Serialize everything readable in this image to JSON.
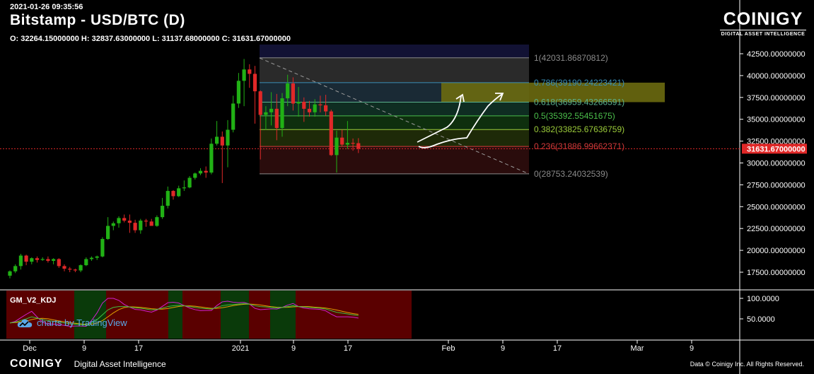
{
  "header": {
    "timestamp": "2021-01-26 09:35:56",
    "title": "Bitstamp - USD/BTC (D)",
    "ohlc": "O: 32264.15000000 H: 32837.63000000 L: 31137.68000000 C: 31631.67000000"
  },
  "logo": {
    "word": "COINIGY",
    "tagline": "DIGITAL ASSET INTELLIGENCE"
  },
  "indicator": {
    "name": "GM_V2_KDJ",
    "watermark": "charts by TradingView"
  },
  "footer": {
    "brand": "COINIGY",
    "tagline": "Digital Asset Intelligence",
    "credit": "Data © Coinigy Inc.  All Rights Reserved."
  },
  "colors": {
    "up": "#21b115",
    "down": "#e02828",
    "background": "#000000",
    "price_line": "#e02828"
  },
  "chart_data": {
    "type": "candlestick",
    "title": "Bitstamp - USD/BTC (D)",
    "ylim": [
      15200,
      43600
    ],
    "y_ticks": [
      "42500.00000000",
      "40000.00000000",
      "37500.00000000",
      "35000.00000000",
      "32500.00000000",
      "30000.00000000",
      "27500.00000000",
      "25000.00000000",
      "22500.00000000",
      "20000.00000000",
      "17500.00000000"
    ],
    "x_ticks": [
      "Dec",
      "9",
      "17",
      "2021",
      "9",
      "17",
      "Feb",
      "9",
      "17",
      "Mar",
      "9"
    ],
    "last_price": "31631.67000000",
    "last_price_value": 31631.67,
    "candles": [
      [
        17100,
        17700,
        16800,
        17600
      ],
      [
        17600,
        18400,
        17400,
        18200
      ],
      [
        18200,
        19600,
        17800,
        19400
      ],
      [
        19400,
        19500,
        18300,
        18700
      ],
      [
        18700,
        19200,
        18400,
        19100
      ],
      [
        19100,
        19300,
        18600,
        18900
      ],
      [
        18900,
        19200,
        18800,
        19000
      ],
      [
        19000,
        19300,
        18600,
        18800
      ],
      [
        18800,
        19100,
        18400,
        19000
      ],
      [
        19000,
        19100,
        18000,
        18200
      ],
      [
        18200,
        18400,
        17600,
        17900
      ],
      [
        17900,
        18100,
        17500,
        17800
      ],
      [
        17800,
        17900,
        17500,
        17700
      ],
      [
        17700,
        18400,
        17500,
        18300
      ],
      [
        18300,
        19200,
        18200,
        19000
      ],
      [
        19000,
        19300,
        18800,
        19150
      ],
      [
        19150,
        19400,
        18900,
        19300
      ],
      [
        19300,
        21500,
        19200,
        21300
      ],
      [
        21300,
        23800,
        21200,
        22800
      ],
      [
        22800,
        23300,
        22300,
        23100
      ],
      [
        23100,
        23900,
        22600,
        23700
      ],
      [
        23700,
        24100,
        23200,
        23400
      ],
      [
        23400,
        24100,
        22000,
        23150
      ],
      [
        23150,
        23500,
        22000,
        22300
      ],
      [
        22300,
        23600,
        21900,
        23400
      ],
      [
        23400,
        23600,
        22700,
        23300
      ],
      [
        23300,
        23600,
        22900,
        22800
      ],
      [
        22800,
        24000,
        22700,
        23800
      ],
      [
        23800,
        26000,
        23600,
        25100
      ],
      [
        25100,
        27300,
        24800,
        26800
      ],
      [
        26800,
        26900,
        25800,
        26200
      ],
      [
        26200,
        27400,
        26100,
        27100
      ],
      [
        27100,
        28000,
        26800,
        27200
      ],
      [
        27200,
        28500,
        27100,
        28300
      ],
      [
        28300,
        28900,
        28100,
        28800
      ],
      [
        28800,
        29400,
        28600,
        29100
      ],
      [
        29100,
        29600,
        28300,
        28900
      ],
      [
        28900,
        32800,
        28700,
        32200
      ],
      [
        32200,
        34800,
        32000,
        33000
      ],
      [
        33000,
        33600,
        27700,
        32000
      ],
      [
        32000,
        34900,
        29500,
        33800
      ],
      [
        33800,
        37700,
        33500,
        36800
      ],
      [
        36800,
        40300,
        36300,
        39400
      ],
      [
        39400,
        41900,
        36500,
        40700
      ],
      [
        40700,
        41300,
        38600,
        40200
      ],
      [
        40200,
        41100,
        34500,
        38200
      ],
      [
        38200,
        38300,
        30400,
        35500
      ],
      [
        35500,
        36500,
        33800,
        35800
      ],
      [
        35800,
        38100,
        34300,
        36200
      ],
      [
        36200,
        37900,
        32600,
        34000
      ],
      [
        34000,
        38000,
        33000,
        37400
      ],
      [
        37400,
        40100,
        36500,
        39100
      ],
      [
        39100,
        39800,
        36000,
        36800
      ],
      [
        36800,
        38700,
        35300,
        37000
      ],
      [
        37000,
        37500,
        34700,
        36200
      ],
      [
        36200,
        37100,
        35300,
        35800
      ],
      [
        35800,
        37300,
        35300,
        36700
      ],
      [
        36700,
        37700,
        35800,
        36600
      ],
      [
        36600,
        37800,
        35400,
        35900
      ],
      [
        35900,
        36100,
        30800,
        30900
      ],
      [
        30900,
        33700,
        28900,
        32900
      ],
      [
        32900,
        33800,
        31900,
        32100
      ],
      [
        32100,
        34800,
        31600,
        32300
      ],
      [
        32300,
        32800,
        31400,
        32200
      ],
      [
        32264.15,
        32837.63,
        31137.68,
        31631.67
      ]
    ],
    "fibonacci": [
      {
        "level": "1",
        "value": "42031.86870812",
        "price": 42031.87,
        "color": "#8a8a8a",
        "band": "#2a2a2a"
      },
      {
        "level": "0.786",
        "value": "39190.24223421",
        "price": 39190.24,
        "color": "#3a8fb7",
        "band": "#1a2a35"
      },
      {
        "level": "0.618",
        "value": "36959.43266591",
        "price": 36959.43,
        "color": "#5ab18e",
        "band": "#0f2d22"
      },
      {
        "level": "0.5",
        "value": "35392.55451675",
        "price": 35392.55,
        "color": "#4bbf4b",
        "band": "#0e2f0e"
      },
      {
        "level": "0.382",
        "value": "33825.67636759",
        "price": 33825.68,
        "color": "#9ccc3a",
        "band": "#1e2a08"
      },
      {
        "level": "0.236",
        "value": "31886.99662371",
        "price": 31887.0,
        "color": "#d23a3a",
        "band": "#2a0c0c"
      },
      {
        "level": "0",
        "value": "28753.24032539",
        "price": 28753.24,
        "color": "#8a8a8a",
        "band": null
      }
    ],
    "indicator_ticks": [
      "100.0000",
      "50.0000"
    ]
  }
}
